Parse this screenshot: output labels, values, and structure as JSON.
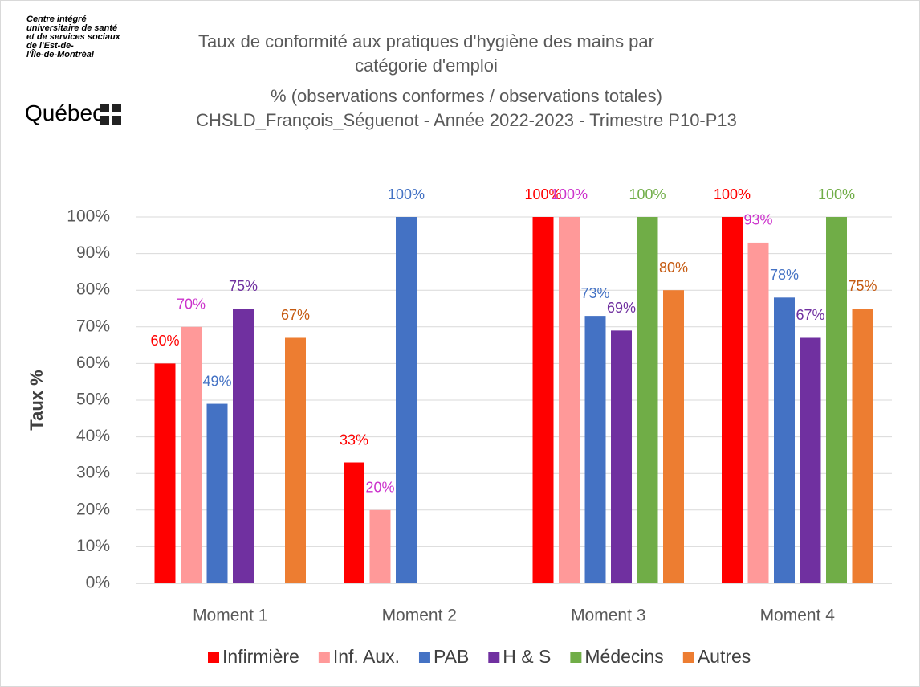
{
  "logo": {
    "lines": [
      "Centre intégré",
      "universitaire de santé",
      "et de services sociaux",
      "de l'Est-de-",
      "l'Île-de-Montréal"
    ],
    "brand": "Québec"
  },
  "chart_data": {
    "type": "bar",
    "title": "Taux de conformité aux pratiques d'hygiène des mains par catégorie d'emploi",
    "subtitle": "% (observations conformes / observations totales)",
    "subtitle2": "CHSLD_François_Séguenot - Année 2022-2023 - Trimestre P10-P13",
    "y_label": "Taux %",
    "categories": [
      "Moment 1",
      "Moment 2",
      "Moment 3",
      "Moment 4"
    ],
    "series": [
      {
        "name": "Infirmière",
        "color": "#ff0000",
        "label_color": "#ff0000",
        "values": [
          60,
          33,
          100,
          100
        ],
        "value_labels": [
          "60%",
          "33%",
          "100%",
          "100%"
        ]
      },
      {
        "name": "Inf. Aux.",
        "color": "#ff9999",
        "label_color": "#cc33cc",
        "values": [
          70,
          20,
          100,
          93
        ],
        "value_labels": [
          "70%",
          "20%",
          "100%",
          "93%"
        ]
      },
      {
        "name": "PAB",
        "color": "#4472c4",
        "label_color": "#4472c4",
        "values": [
          49,
          100,
          73,
          78
        ],
        "value_labels": [
          "49%",
          "100%",
          "73%",
          "78%"
        ]
      },
      {
        "name": "H & S",
        "color": "#7030a0",
        "label_color": "#7030a0",
        "values": [
          75,
          null,
          69,
          67
        ],
        "value_labels": [
          "75%",
          null,
          "69%",
          "67%"
        ]
      },
      {
        "name": "Médecins",
        "color": "#70ad47",
        "label_color": "#70ad47",
        "values": [
          null,
          null,
          100,
          100
        ],
        "value_labels": [
          null,
          null,
          "100%",
          "100%"
        ]
      },
      {
        "name": "Autres",
        "color": "#ed7d31",
        "label_color": "#c55a11",
        "values": [
          67,
          null,
          80,
          75
        ],
        "value_labels": [
          "67%",
          null,
          "80%",
          "75%"
        ]
      }
    ],
    "ylim": [
      0,
      100
    ],
    "yticks": [
      {
        "value": 0,
        "label": "0%"
      },
      {
        "value": 10,
        "label": "10%"
      },
      {
        "value": 20,
        "label": "20%"
      },
      {
        "value": 30,
        "label": "30%"
      },
      {
        "value": 40,
        "label": "40%"
      },
      {
        "value": 50,
        "label": "50%"
      },
      {
        "value": 60,
        "label": "60%"
      },
      {
        "value": 70,
        "label": "70%"
      },
      {
        "value": 80,
        "label": "80%"
      },
      {
        "value": 90,
        "label": "90%"
      },
      {
        "value": 100,
        "label": "100%"
      }
    ],
    "grid": true,
    "legend": "bottom"
  }
}
